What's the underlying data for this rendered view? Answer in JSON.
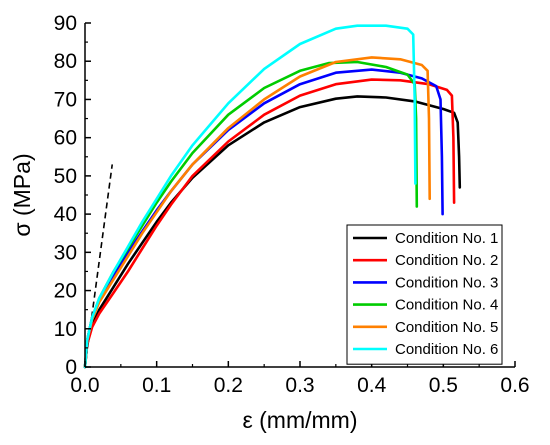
{
  "chart_data": {
    "type": "line",
    "xlabel": "ε (mm/mm)",
    "ylabel": "σ (MPa)",
    "xlim": [
      0.0,
      0.6
    ],
    "ylim": [
      0,
      90
    ],
    "x_ticks": [
      0.0,
      0.1,
      0.2,
      0.3,
      0.4,
      0.5,
      0.6
    ],
    "y_ticks": [
      0,
      10,
      20,
      30,
      40,
      50,
      60,
      70,
      80,
      90
    ],
    "x_tick_labels": [
      "0.0",
      "0.1",
      "0.2",
      "0.3",
      "0.4",
      "0.5",
      "0.6"
    ],
    "y_tick_labels": [
      "0",
      "10",
      "20",
      "30",
      "40",
      "50",
      "60",
      "70",
      "80",
      "90"
    ],
    "legend_position": "bottom-right",
    "grid": false,
    "reference_line": {
      "style": "dashed",
      "color": "#000000",
      "points": [
        [
          0.0,
          0
        ],
        [
          0.038,
          53
        ]
      ]
    },
    "series": [
      {
        "name": "Condition No. 1",
        "color": "#000000",
        "points": [
          [
            0.0,
            0
          ],
          [
            0.003,
            6
          ],
          [
            0.01,
            11
          ],
          [
            0.02,
            15
          ],
          [
            0.04,
            21
          ],
          [
            0.06,
            27
          ],
          [
            0.08,
            32.5
          ],
          [
            0.1,
            38
          ],
          [
            0.12,
            43
          ],
          [
            0.15,
            49.5
          ],
          [
            0.2,
            58
          ],
          [
            0.25,
            64
          ],
          [
            0.3,
            68
          ],
          [
            0.35,
            70.2
          ],
          [
            0.38,
            70.8
          ],
          [
            0.42,
            70.5
          ],
          [
            0.46,
            69.5
          ],
          [
            0.5,
            67.5
          ],
          [
            0.515,
            66.5
          ],
          [
            0.52,
            64
          ],
          [
            0.522,
            55
          ],
          [
            0.523,
            47
          ]
        ]
      },
      {
        "name": "Condition No. 2",
        "color": "#ff0000",
        "points": [
          [
            0.0,
            0
          ],
          [
            0.003,
            6
          ],
          [
            0.01,
            10.5
          ],
          [
            0.02,
            14
          ],
          [
            0.04,
            19.5
          ],
          [
            0.06,
            25
          ],
          [
            0.08,
            31
          ],
          [
            0.1,
            37
          ],
          [
            0.12,
            42.5
          ],
          [
            0.15,
            50
          ],
          [
            0.2,
            59
          ],
          [
            0.25,
            66
          ],
          [
            0.3,
            71
          ],
          [
            0.35,
            74
          ],
          [
            0.4,
            75.2
          ],
          [
            0.44,
            75
          ],
          [
            0.48,
            74
          ],
          [
            0.505,
            72.5
          ],
          [
            0.512,
            71
          ],
          [
            0.514,
            60
          ],
          [
            0.515,
            43
          ]
        ]
      },
      {
        "name": "Condition No. 3",
        "color": "#0000ff",
        "points": [
          [
            0.0,
            0
          ],
          [
            0.003,
            7
          ],
          [
            0.01,
            13
          ],
          [
            0.02,
            17.5
          ],
          [
            0.04,
            24
          ],
          [
            0.06,
            30
          ],
          [
            0.08,
            35.5
          ],
          [
            0.1,
            41
          ],
          [
            0.12,
            46
          ],
          [
            0.15,
            53
          ],
          [
            0.2,
            62
          ],
          [
            0.25,
            69
          ],
          [
            0.3,
            74
          ],
          [
            0.35,
            77
          ],
          [
            0.4,
            77.8
          ],
          [
            0.44,
            77
          ],
          [
            0.47,
            75.5
          ],
          [
            0.49,
            73.5
          ],
          [
            0.496,
            70
          ],
          [
            0.498,
            55
          ],
          [
            0.499,
            40
          ]
        ]
      },
      {
        "name": "Condition No. 4",
        "color": "#00cc00",
        "points": [
          [
            0.0,
            0
          ],
          [
            0.003,
            7
          ],
          [
            0.01,
            13
          ],
          [
            0.02,
            18
          ],
          [
            0.04,
            25
          ],
          [
            0.06,
            31
          ],
          [
            0.08,
            37
          ],
          [
            0.1,
            43
          ],
          [
            0.12,
            48.5
          ],
          [
            0.15,
            56
          ],
          [
            0.2,
            66
          ],
          [
            0.25,
            73
          ],
          [
            0.3,
            77.5
          ],
          [
            0.34,
            79.5
          ],
          [
            0.38,
            79.8
          ],
          [
            0.42,
            78.5
          ],
          [
            0.45,
            76.5
          ],
          [
            0.46,
            74
          ],
          [
            0.462,
            65
          ],
          [
            0.463,
            42
          ]
        ]
      },
      {
        "name": "Condition No. 5",
        "color": "#ff8000",
        "points": [
          [
            0.0,
            0
          ],
          [
            0.003,
            7
          ],
          [
            0.01,
            12.5
          ],
          [
            0.02,
            17
          ],
          [
            0.04,
            23
          ],
          [
            0.06,
            29
          ],
          [
            0.08,
            35
          ],
          [
            0.1,
            40.5
          ],
          [
            0.12,
            46
          ],
          [
            0.15,
            53
          ],
          [
            0.2,
            62.5
          ],
          [
            0.25,
            70
          ],
          [
            0.3,
            76
          ],
          [
            0.35,
            79.8
          ],
          [
            0.4,
            81
          ],
          [
            0.44,
            80.5
          ],
          [
            0.47,
            79
          ],
          [
            0.478,
            77.5
          ],
          [
            0.48,
            65
          ],
          [
            0.481,
            44
          ]
        ]
      },
      {
        "name": "Condition No. 6",
        "color": "#00ffff",
        "points": [
          [
            0.0,
            0
          ],
          [
            0.003,
            7
          ],
          [
            0.01,
            13
          ],
          [
            0.02,
            18
          ],
          [
            0.04,
            25
          ],
          [
            0.06,
            31.5
          ],
          [
            0.08,
            38
          ],
          [
            0.1,
            44
          ],
          [
            0.12,
            50
          ],
          [
            0.15,
            58
          ],
          [
            0.2,
            69
          ],
          [
            0.25,
            78
          ],
          [
            0.3,
            84.5
          ],
          [
            0.35,
            88.5
          ],
          [
            0.38,
            89.3
          ],
          [
            0.42,
            89.3
          ],
          [
            0.45,
            88.5
          ],
          [
            0.458,
            87
          ],
          [
            0.46,
            70
          ],
          [
            0.461,
            48
          ]
        ]
      }
    ]
  }
}
